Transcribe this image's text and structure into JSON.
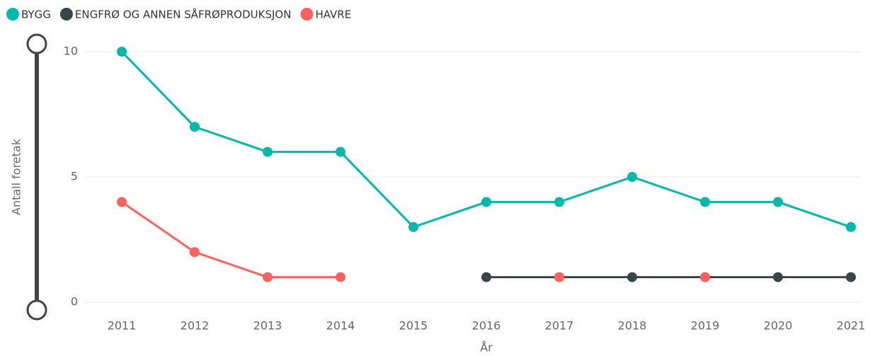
{
  "chart_data": {
    "type": "line",
    "x": [
      2011,
      2012,
      2013,
      2014,
      2015,
      2016,
      2017,
      2018,
      2019,
      2020,
      2021
    ],
    "xlabel": "År",
    "ylabel": "Antall foretak",
    "ylim": [
      0,
      10
    ],
    "yticks": [
      0,
      5,
      10
    ],
    "grid": true,
    "legend": "top-left",
    "series": [
      {
        "name": "BYGG",
        "color": "#01B8AA",
        "values": [
          10,
          7,
          6,
          6,
          3,
          4,
          4,
          5,
          4,
          4,
          3
        ]
      },
      {
        "name": "ENGFRØ OG ANNEN SÅFRØPRODUKSJON",
        "color": "#374649",
        "values": [
          null,
          null,
          null,
          null,
          null,
          1,
          1,
          1,
          1,
          1,
          1
        ]
      },
      {
        "name": "HAVRE",
        "color": "#FD625E",
        "values": [
          4,
          2,
          1,
          1,
          null,
          null,
          1,
          null,
          1,
          null,
          null
        ]
      }
    ]
  }
}
